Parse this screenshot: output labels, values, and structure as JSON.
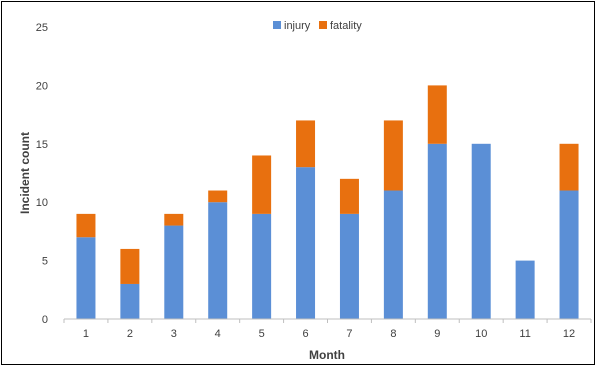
{
  "chart_data": {
    "type": "bar",
    "stacked": true,
    "categories": [
      "1",
      "2",
      "3",
      "4",
      "5",
      "6",
      "7",
      "8",
      "9",
      "10",
      "11",
      "12"
    ],
    "series": [
      {
        "name": "injury",
        "color": "#5B8FD6",
        "values": [
          7,
          3,
          8,
          10,
          9,
          13,
          9,
          11,
          15,
          15,
          5,
          11
        ]
      },
      {
        "name": "fatality",
        "color": "#E8700F",
        "values": [
          2,
          3,
          1,
          1,
          5,
          4,
          3,
          6,
          5,
          0,
          0,
          4
        ]
      }
    ],
    "xlabel": "Month",
    "ylabel": "Incident count",
    "ylim": [
      0,
      25
    ],
    "yticks": [
      0,
      5,
      10,
      15,
      20,
      25
    ],
    "grid": false,
    "legend_position": "top-center"
  }
}
